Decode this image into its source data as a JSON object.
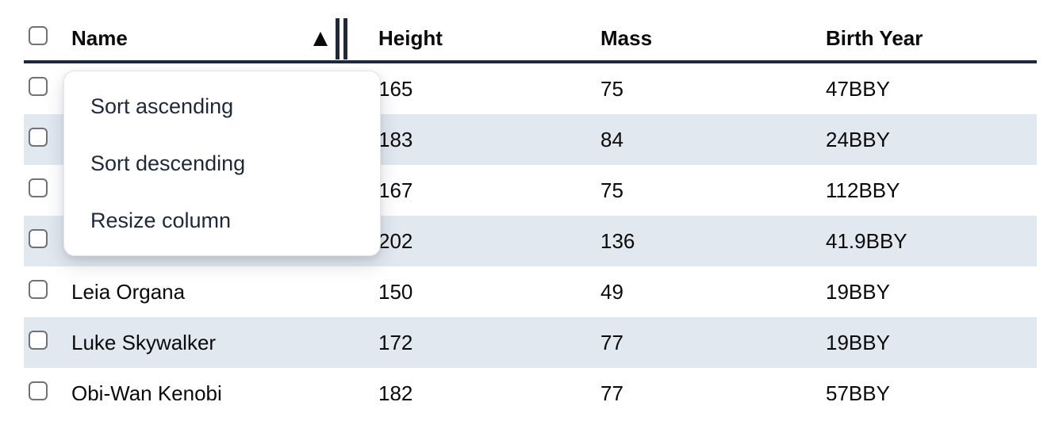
{
  "table": {
    "columns": {
      "name": "Name",
      "height": "Height",
      "mass": "Mass",
      "birth_year": "Birth Year"
    },
    "sort": {
      "column": "Name",
      "direction": "ascending",
      "indicator_icon": "▲"
    },
    "rows": [
      {
        "name": "",
        "height": "165",
        "mass": "75",
        "birth_year": "47BBY"
      },
      {
        "name": "",
        "height": "183",
        "mass": "84",
        "birth_year": "24BBY"
      },
      {
        "name": "",
        "height": "167",
        "mass": "75",
        "birth_year": "112BBY"
      },
      {
        "name": "",
        "height": "202",
        "mass": "136",
        "birth_year": "41.9BBY"
      },
      {
        "name": "Leia Organa",
        "height": "150",
        "mass": "49",
        "birth_year": "19BBY"
      },
      {
        "name": "Luke Skywalker",
        "height": "172",
        "mass": "77",
        "birth_year": "19BBY"
      },
      {
        "name": "Obi-Wan Kenobi",
        "height": "182",
        "mass": "77",
        "birth_year": "57BBY"
      }
    ]
  },
  "context_menu": {
    "items": [
      {
        "label": "Sort ascending"
      },
      {
        "label": "Sort descending"
      },
      {
        "label": "Resize column"
      }
    ]
  },
  "colors": {
    "row_stripe": "#e2e8f0",
    "header_border": "#1e293b",
    "menu_text": "#1e293b",
    "cell_text": "#0a0a0a",
    "checkbox_border": "#71717a"
  }
}
